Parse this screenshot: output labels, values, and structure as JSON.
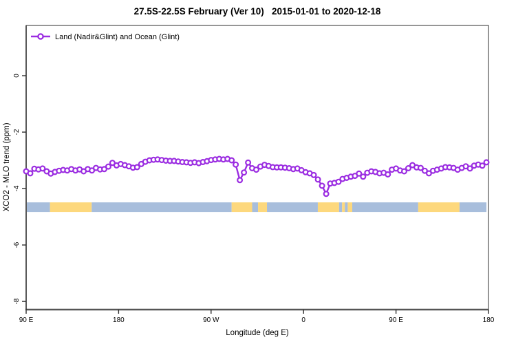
{
  "title": "27.5S-22.5S February (Ver 10)   2015-01-01 to 2020-12-18",
  "colors": {
    "line": "#9B2DE1",
    "marker_fill": "#ffffff",
    "land_band": "#FDD87D",
    "ocean_band": "#A8BEDC",
    "box": "#2e2e2e",
    "axis": "#555555",
    "text": "#000000",
    "background": "#ffffff"
  },
  "chart_data": {
    "type": "line",
    "title": "27.5S-22.5S February (Ver 10)   2015-01-01 to 2020-12-18",
    "xlabel": "Longitude (deg E)",
    "ylabel": "XCO2 - MLO trend (ppm)",
    "legend": {
      "label": "Land (Nadir&Glint) and Ocean (Glint)",
      "position": "top-left"
    },
    "grid": false,
    "xlim": [
      90,
      540
    ],
    "ylim": [
      -8.29,
      1.78
    ],
    "x_ticks": [
      {
        "lon": 90,
        "label": "90 E"
      },
      {
        "lon": 180,
        "label": "180"
      },
      {
        "lon": 270,
        "label": "90 W"
      },
      {
        "lon": 360,
        "label": "0"
      },
      {
        "lon": 450,
        "label": "90 E"
      },
      {
        "lon": 540,
        "label": "180"
      }
    ],
    "y_ticks": [
      {
        "value": 0,
        "label": "0"
      },
      {
        "value": -2,
        "label": "-2"
      },
      {
        "value": -4,
        "label": "-4"
      },
      {
        "value": -6,
        "label": "-6"
      },
      {
        "value": -8,
        "label": "-8"
      }
    ],
    "series": [
      {
        "name": "Land (Nadir&Glint) and Ocean (Glint)",
        "marker": "open-circle",
        "x": [
          90,
          94,
          98,
          102,
          106,
          110,
          114,
          118,
          122,
          126,
          130,
          134,
          138,
          142,
          146,
          150,
          154,
          158,
          162,
          166,
          170,
          174,
          178,
          182,
          186,
          190,
          194,
          198,
          202,
          206,
          210,
          214,
          218,
          222,
          226,
          230,
          234,
          238,
          242,
          246,
          250,
          254,
          258,
          262,
          266,
          270,
          274,
          278,
          282,
          286,
          290,
          294,
          298,
          302,
          306,
          310,
          314,
          318,
          322,
          326,
          330,
          334,
          338,
          342,
          346,
          350,
          354,
          358,
          362,
          366,
          370,
          374,
          378,
          382,
          386,
          390,
          394,
          398,
          402,
          406,
          410,
          414,
          418,
          422,
          426,
          430,
          434,
          438,
          442,
          446,
          450,
          454,
          458,
          462,
          466,
          470,
          474,
          478,
          482,
          486,
          490,
          494,
          498,
          502,
          506,
          510,
          514,
          518,
          522,
          526,
          530,
          534,
          538
        ],
        "y": [
          -3.39,
          -3.46,
          -3.3,
          -3.32,
          -3.29,
          -3.39,
          -3.47,
          -3.41,
          -3.37,
          -3.34,
          -3.36,
          -3.31,
          -3.36,
          -3.32,
          -3.39,
          -3.31,
          -3.36,
          -3.27,
          -3.32,
          -3.31,
          -3.22,
          -3.09,
          -3.18,
          -3.13,
          -3.17,
          -3.21,
          -3.26,
          -3.24,
          -3.13,
          -3.05,
          -3.0,
          -2.98,
          -2.97,
          -2.99,
          -3.01,
          -3.02,
          -3.02,
          -3.04,
          -3.06,
          -3.07,
          -3.09,
          -3.07,
          -3.1,
          -3.06,
          -3.03,
          -2.99,
          -2.97,
          -2.95,
          -2.97,
          -2.95,
          -3.0,
          -3.15,
          -3.7,
          -3.43,
          -3.08,
          -3.28,
          -3.33,
          -3.22,
          -3.16,
          -3.2,
          -3.24,
          -3.25,
          -3.25,
          -3.26,
          -3.28,
          -3.31,
          -3.29,
          -3.35,
          -3.42,
          -3.46,
          -3.52,
          -3.68,
          -3.9,
          -4.19,
          -3.82,
          -3.8,
          -3.76,
          -3.66,
          -3.62,
          -3.58,
          -3.55,
          -3.47,
          -3.58,
          -3.44,
          -3.39,
          -3.41,
          -3.46,
          -3.44,
          -3.5,
          -3.33,
          -3.29,
          -3.36,
          -3.39,
          -3.28,
          -3.17,
          -3.25,
          -3.27,
          -3.37,
          -3.46,
          -3.37,
          -3.33,
          -3.29,
          -3.24,
          -3.25,
          -3.27,
          -3.33,
          -3.27,
          -3.21,
          -3.29,
          -3.19,
          -3.15,
          -3.19,
          -3.07
        ]
      }
    ],
    "surface_band": {
      "description": "land-ocean strip",
      "y_center": -4.66,
      "y_halfwidth": 0.17,
      "segments": [
        {
          "from": 90.7,
          "to": 113.2,
          "type": "ocean"
        },
        {
          "from": 113.2,
          "to": 153.8,
          "type": "land"
        },
        {
          "from": 153.8,
          "to": 290.0,
          "type": "ocean"
        },
        {
          "from": 290.0,
          "to": 310.0,
          "type": "land"
        },
        {
          "from": 310.0,
          "to": 315.7,
          "type": "ocean"
        },
        {
          "from": 315.7,
          "to": 324.4,
          "type": "land"
        },
        {
          "from": 324.4,
          "to": 373.9,
          "type": "ocean"
        },
        {
          "from": 373.9,
          "to": 394.6,
          "type": "land"
        },
        {
          "from": 394.6,
          "to": 397.5,
          "type": "ocean"
        },
        {
          "from": 397.5,
          "to": 400.2,
          "type": "land"
        },
        {
          "from": 400.2,
          "to": 403.0,
          "type": "ocean"
        },
        {
          "from": 403.0,
          "to": 407.4,
          "type": "land"
        },
        {
          "from": 407.4,
          "to": 471.6,
          "type": "ocean"
        },
        {
          "from": 471.6,
          "to": 511.8,
          "type": "land"
        },
        {
          "from": 511.8,
          "to": 538.0,
          "type": "ocean"
        }
      ]
    }
  }
}
